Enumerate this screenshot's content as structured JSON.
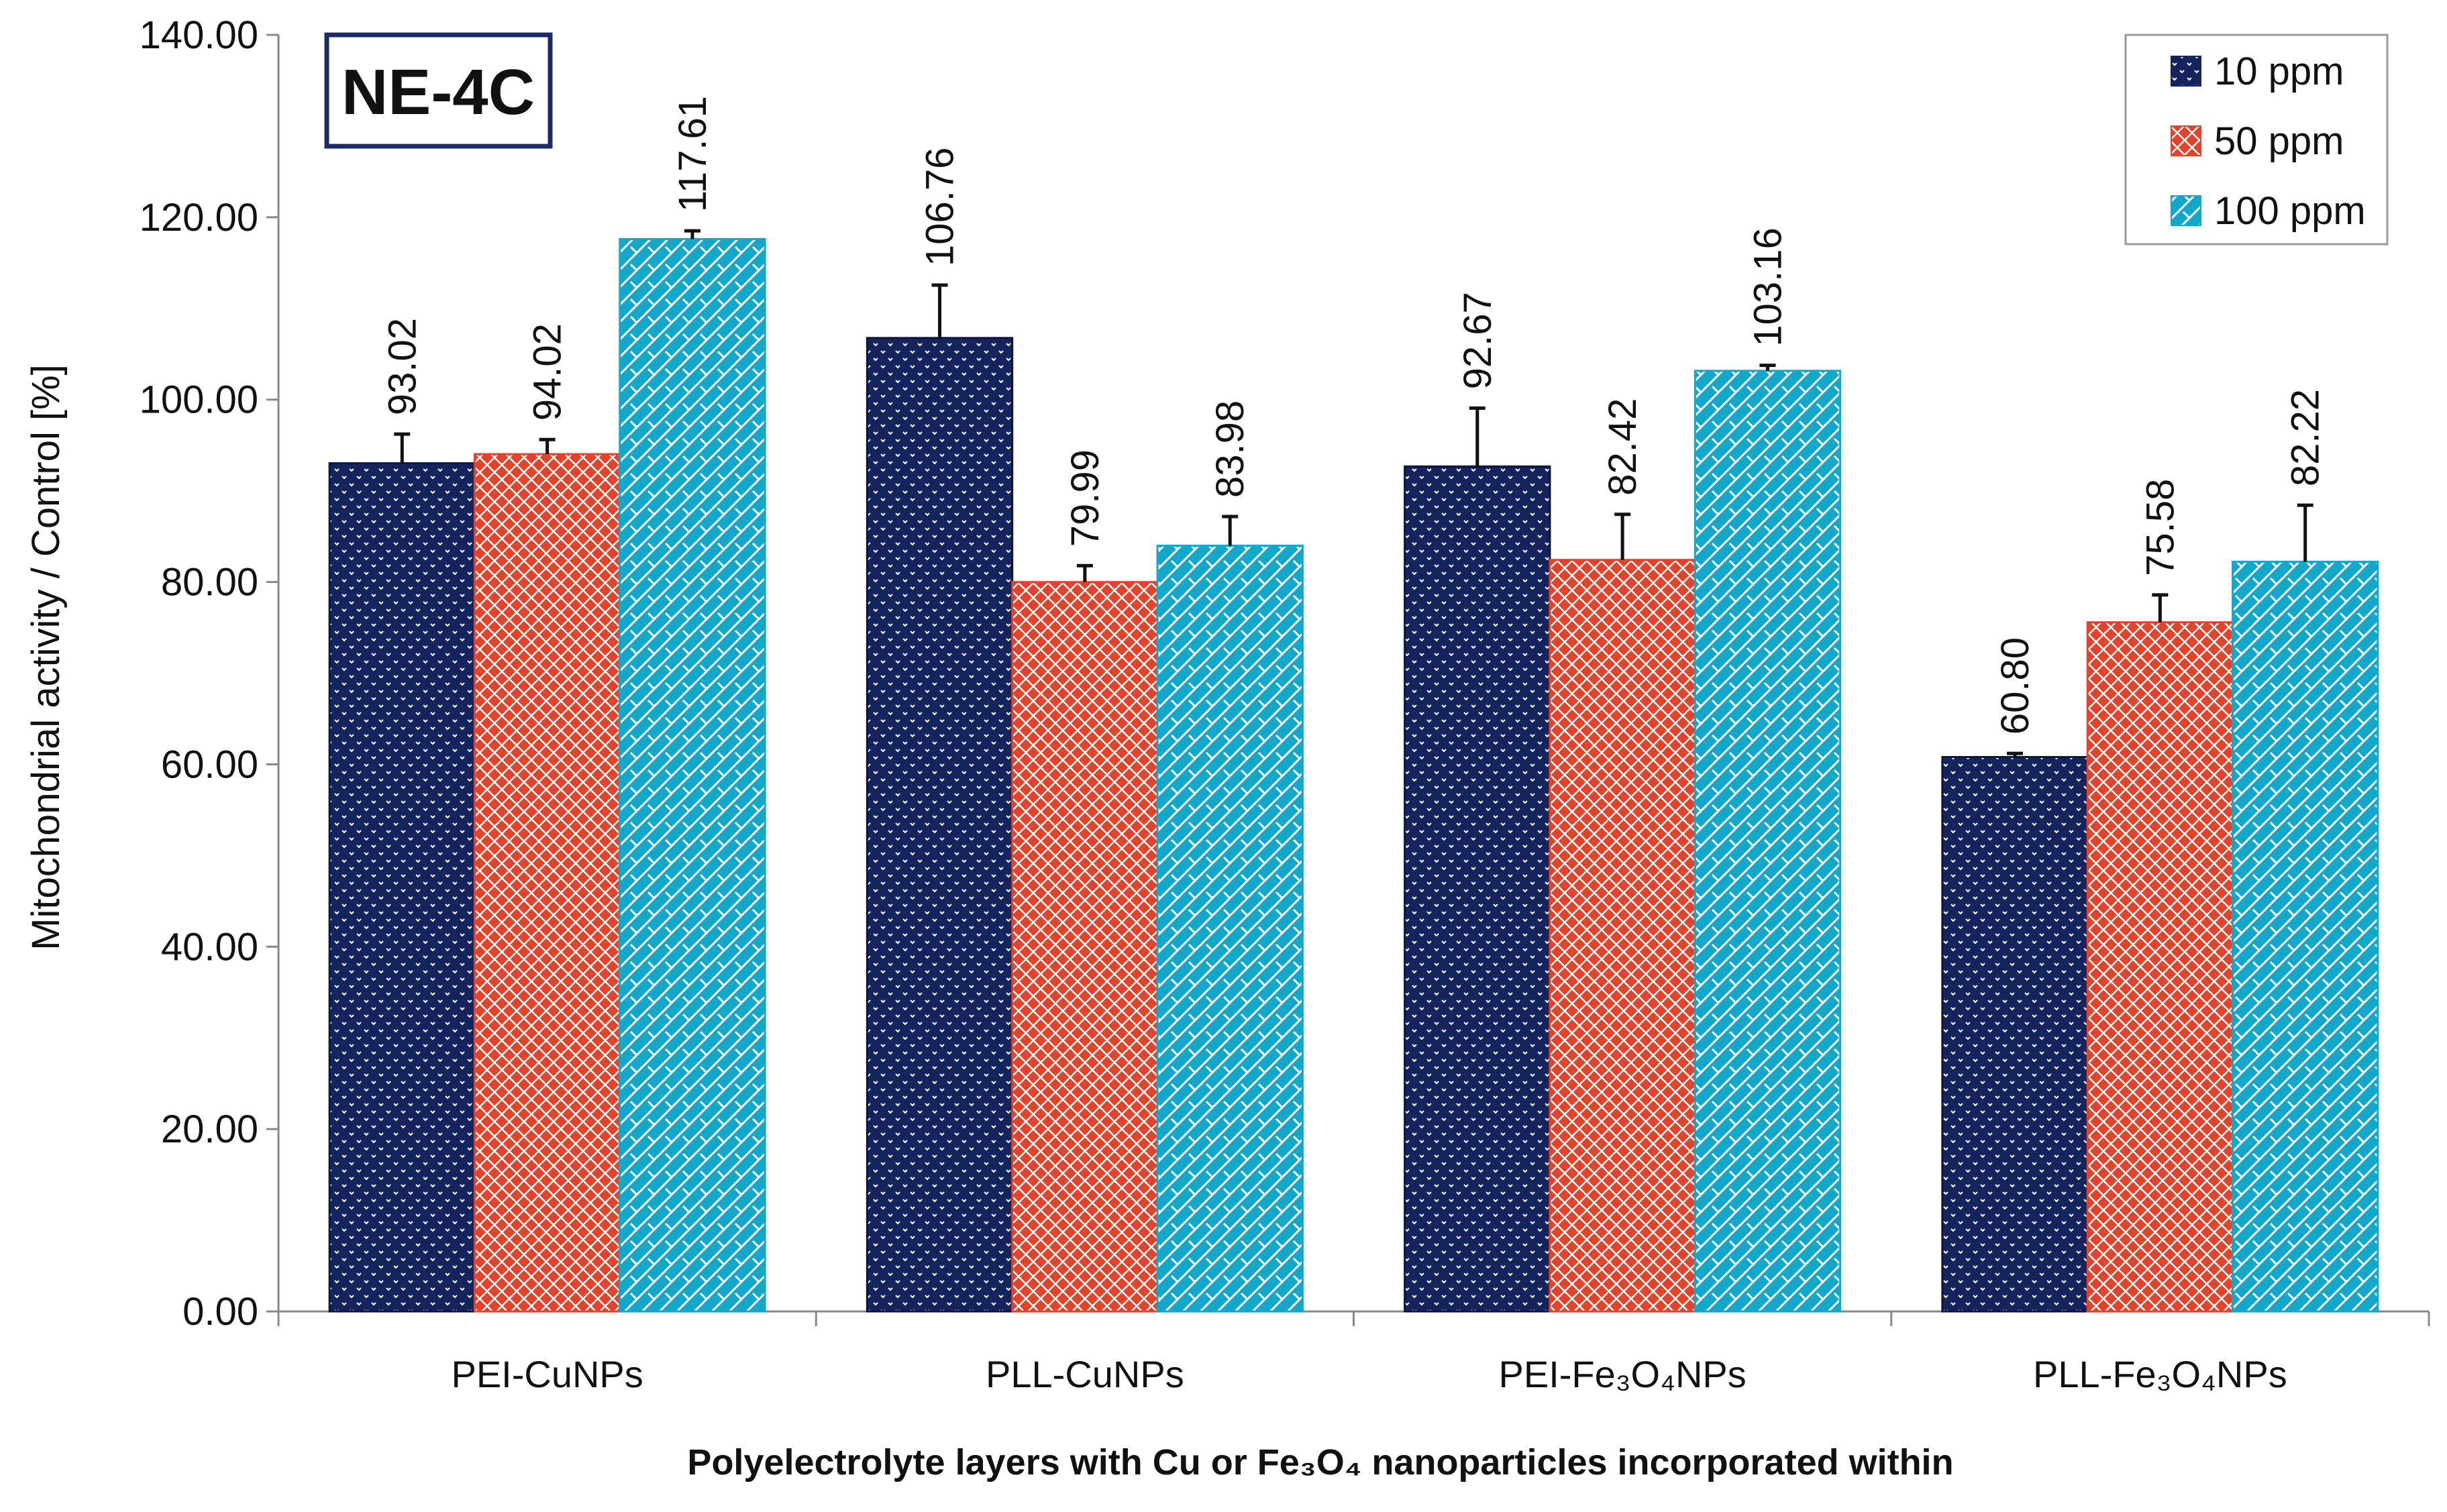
{
  "chart_data": {
    "type": "bar",
    "panel_label": "NE-4C",
    "categories": [
      "PEI-CuNPs",
      "PLL-CuNPs",
      "PEI-Fe₃O₄NPs",
      "PLL-Fe₃O₄NPs"
    ],
    "series": [
      {
        "name": "10 ppm",
        "color": "#16245e",
        "pattern": "dots",
        "values": [
          93.02,
          106.76,
          92.67,
          60.8
        ],
        "errors": [
          3.2,
          5.8,
          6.4,
          0.4
        ]
      },
      {
        "name": "50 ppm",
        "color": "#e2432a",
        "pattern": "diamonds",
        "values": [
          94.02,
          79.99,
          82.42,
          75.58
        ],
        "errors": [
          1.6,
          1.8,
          5.0,
          3.0
        ]
      },
      {
        "name": "100 ppm",
        "color": "#13a8c9",
        "pattern": "weave",
        "values": [
          117.61,
          83.98,
          103.16,
          82.22
        ],
        "errors": [
          0.9,
          3.2,
          0.6,
          6.2
        ]
      }
    ],
    "value_labels": [
      [
        "93.02",
        "106.76",
        "92.67",
        "60.80"
      ],
      [
        "94.02",
        "79.99",
        "82.42",
        "75.58"
      ],
      [
        "117.61",
        "83.98",
        "103.16",
        "82.22"
      ]
    ],
    "ylim": [
      0,
      140
    ],
    "yticks": [
      "0.00",
      "20.00",
      "40.00",
      "60.00",
      "80.00",
      "100.00",
      "120.00",
      "140.00"
    ],
    "ylabel": "Mitochondrial activity / Control [%]",
    "xlabel": "Polyelectrolyte layers with Cu or Fe₃O₄ nanoparticles incorporated within",
    "legend_position": "top-right"
  }
}
